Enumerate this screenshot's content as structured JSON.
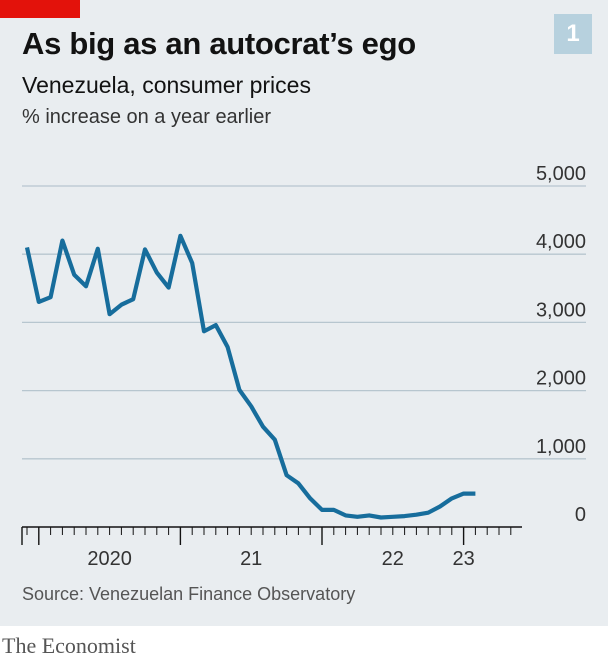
{
  "badge": "1",
  "footer": {
    "source": "Source: Venezuelan Finance Observatory",
    "brand": "The Economist"
  },
  "colors": {
    "line": "#176d9c",
    "gridline": "#b7c6cf",
    "accent_red": "#e3120b",
    "background": "#e9edf0"
  },
  "chart_data": {
    "type": "line",
    "title": "As big as an autocrat’s ego",
    "subtitle": "Venezuela, consumer prices",
    "ylabel": "% increase on a year earlier",
    "ylim": [
      0,
      5000
    ],
    "yticks": [
      0,
      1000,
      2000,
      3000,
      4000,
      5000
    ],
    "ytick_labels": [
      "0",
      "1,000",
      "2,000",
      "3,000",
      "4,000",
      "5,000"
    ],
    "x_labels": [
      "2020",
      "21",
      "22",
      "23"
    ],
    "x_label_dates": [
      "2020-07",
      "2021-07",
      "2022-07",
      "2023-01"
    ],
    "year_boundaries": [
      "2020-01",
      "2021-01",
      "2022-01",
      "2023-01"
    ],
    "x_range": [
      "2019-12",
      "2023-12"
    ],
    "grid": true,
    "legend": "none",
    "series": [
      {
        "x": [
          "2019-12",
          "2020-01",
          "2020-02",
          "2020-03",
          "2020-04",
          "2020-05",
          "2020-06",
          "2020-07",
          "2020-08",
          "2020-09",
          "2020-10",
          "2020-11",
          "2020-12",
          "2021-01",
          "2021-02",
          "2021-03",
          "2021-04",
          "2021-05",
          "2021-06",
          "2021-07",
          "2021-08",
          "2021-09",
          "2021-10",
          "2021-11",
          "2021-12",
          "2022-01",
          "2022-02",
          "2022-03",
          "2022-04",
          "2022-05",
          "2022-06",
          "2022-07",
          "2022-08",
          "2022-09",
          "2022-10",
          "2022-11",
          "2022-12",
          "2023-01",
          "2023-02"
        ],
        "values": [
          4100,
          3300,
          3370,
          4200,
          3700,
          3530,
          4080,
          3120,
          3260,
          3340,
          4070,
          3730,
          3510,
          4270,
          3870,
          2870,
          2960,
          2640,
          2010,
          1770,
          1470,
          1280,
          760,
          640,
          420,
          250,
          250,
          170,
          150,
          170,
          140,
          150,
          160,
          180,
          210,
          300,
          420,
          490,
          490
        ]
      }
    ]
  }
}
